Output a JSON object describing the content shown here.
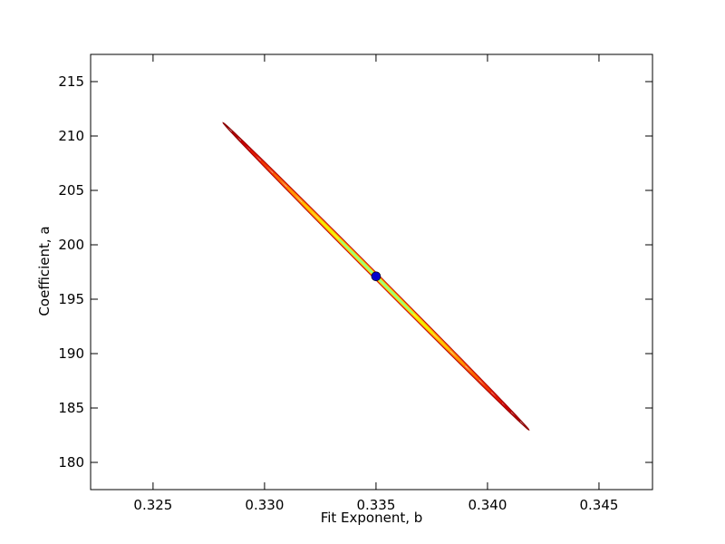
{
  "chart_data": {
    "type": "contour",
    "title": "",
    "xlabel": "Fit Exponent, b",
    "ylabel": "Coefficient, a",
    "xlim": [
      0.3222,
      0.3474
    ],
    "ylim": [
      177.5,
      217.5
    ],
    "xticks": [
      0.325,
      0.33,
      0.335,
      0.34,
      0.345
    ],
    "xtick_labels": [
      "0.325",
      "0.330",
      "0.335",
      "0.340",
      "0.345"
    ],
    "yticks": [
      180,
      185,
      190,
      195,
      200,
      205,
      210,
      215
    ],
    "ytick_labels": [
      "180",
      "185",
      "190",
      "195",
      "200",
      "205",
      "210",
      "215"
    ],
    "grid": false,
    "best_fit_point": {
      "x": 0.335,
      "y": 197.1,
      "color": "#0000cc"
    },
    "ellipse_axis": {
      "direction": [
        -0.00685,
        14.1
      ],
      "width_dir": [
        0.00011,
        0.107
      ]
    },
    "contours": [
      {
        "level": 9,
        "scale": 1.0,
        "color": "#8b0000"
      },
      {
        "level": 8,
        "scale": 0.94,
        "color": "#a80000"
      },
      {
        "level": 7,
        "scale": 0.88,
        "color": "#c40000"
      },
      {
        "level": 6,
        "scale": 0.82,
        "color": "#dc1a00"
      },
      {
        "level": 5,
        "scale": 0.75,
        "color": "#ee3a00"
      },
      {
        "level": 4,
        "scale": 0.67,
        "color": "#f86a00"
      },
      {
        "level": 3,
        "scale": 0.58,
        "color": "#ff9a00"
      },
      {
        "level": 2,
        "scale": 0.48,
        "color": "#ffc800"
      },
      {
        "level": 1,
        "scale": 0.37,
        "color": "#f0f000"
      },
      {
        "level": 0,
        "scale": 0.24,
        "color": "#9aff7a"
      }
    ]
  }
}
